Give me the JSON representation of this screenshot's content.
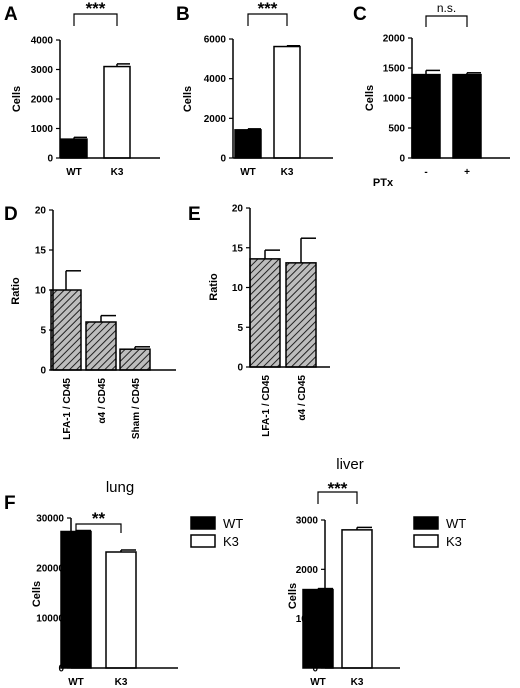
{
  "colors": {
    "filled": "#000000",
    "open": "#ffffff",
    "hatch_line": "#222222",
    "hatch_bg": "#bdbdbd"
  },
  "chart_data": [
    {
      "panel": "A",
      "type": "bar",
      "categories": [
        "WT",
        "K3"
      ],
      "values": [
        640,
        3100
      ],
      "errors": [
        60,
        90
      ],
      "fills": [
        "filled",
        "open"
      ],
      "ylabel": "Cells",
      "ylim": [
        0,
        4000
      ],
      "yticks": [
        "0",
        "1000",
        "2000",
        "3000",
        "4000"
      ],
      "significance": "***"
    },
    {
      "panel": "B",
      "type": "bar",
      "categories": [
        "WT",
        "K3"
      ],
      "values": [
        1420,
        5620
      ],
      "errors": [
        50,
        40
      ],
      "fills": [
        "filled",
        "open"
      ],
      "ylabel": "Cells",
      "ylim": [
        0,
        6000
      ],
      "yticks": [
        "0",
        "2000",
        "4000",
        "6000"
      ],
      "significance": "***"
    },
    {
      "panel": "C",
      "type": "bar",
      "categories": [
        "-",
        "+"
      ],
      "values": [
        1390,
        1390
      ],
      "errors": [
        70,
        30
      ],
      "fills": [
        "filled",
        "filled"
      ],
      "ylabel": "Cells",
      "xlabel": "PTx",
      "ylim": [
        0,
        2000
      ],
      "yticks": [
        "0",
        "500",
        "1000",
        "1500",
        "2000"
      ],
      "significance": "n.s."
    },
    {
      "panel": "D",
      "type": "bar",
      "categories": [
        "LFA-1 / CD45",
        "α4 / CD45",
        "Sham / CD45"
      ],
      "values": [
        10,
        6,
        2.6
      ],
      "errors": [
        2.4,
        0.8,
        0.3
      ],
      "fills": [
        "hatch",
        "hatch",
        "hatch"
      ],
      "ylabel": "Ratio",
      "ylim": [
        0,
        20
      ],
      "yticks": [
        "0",
        "5",
        "10",
        "15",
        "20"
      ]
    },
    {
      "panel": "E",
      "type": "bar",
      "categories": [
        "LFA-1 / CD45",
        "α4 / CD45"
      ],
      "values": [
        13.6,
        13.1
      ],
      "errors": [
        1.1,
        3.1
      ],
      "fills": [
        "hatch",
        "hatch"
      ],
      "ylabel": "Ratio",
      "ylim": [
        0,
        20
      ],
      "yticks": [
        "0",
        "5",
        "10",
        "15",
        "20"
      ]
    },
    {
      "panel": "F",
      "type": "bar",
      "title": "lung",
      "categories": [
        "WT",
        "K3"
      ],
      "values": [
        27300,
        23200
      ],
      "errors": [
        200,
        400
      ],
      "fills": [
        "filled",
        "open"
      ],
      "ylabel": "Cells",
      "ylim": [
        0,
        30000
      ],
      "yticks": [
        "0",
        "10000",
        "20000",
        "30000"
      ],
      "significance": "**",
      "legend": [
        {
          "label": "WT",
          "fill": "filled"
        },
        {
          "label": "K3",
          "fill": "open"
        }
      ]
    },
    {
      "type": "bar",
      "title": "liver",
      "categories": [
        "WT",
        "K3"
      ],
      "values": [
        1590,
        2800
      ],
      "errors": [
        20,
        50
      ],
      "fills": [
        "filled",
        "open"
      ],
      "ylabel": "Cells",
      "ylim": [
        0,
        3000
      ],
      "yticks": [
        "0",
        "1000",
        "2000",
        "3000"
      ],
      "significance": "***",
      "legend": [
        {
          "label": "WT",
          "fill": "filled"
        },
        {
          "label": "K3",
          "fill": "open"
        }
      ]
    }
  ]
}
